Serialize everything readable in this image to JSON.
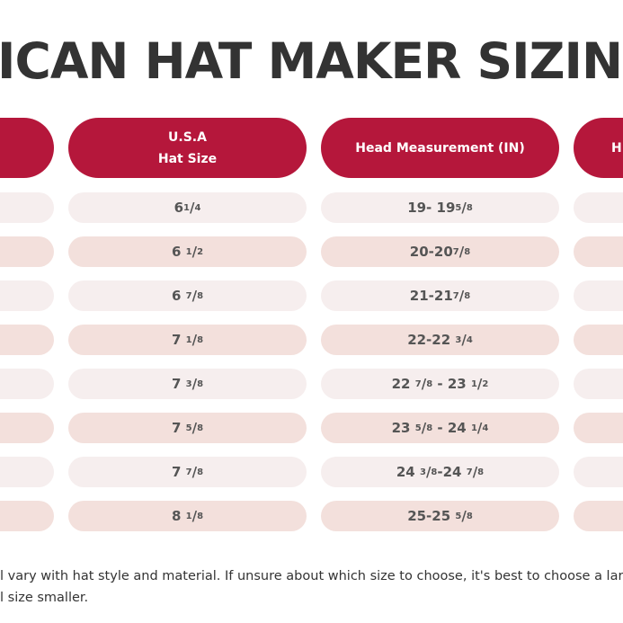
{
  "title": "ICAN HAT MAKER SIZING C",
  "table": {
    "headers": [
      [
        "U.S.A",
        "Hat Size"
      ],
      [
        "Head Measurement (IN)"
      ],
      [
        "H"
      ]
    ],
    "rows": [
      [
        [
          "6",
          {
            "n": "1",
            "s": "/",
            "d": "4"
          }
        ],
        [
          "19- 19",
          {
            "n": "5",
            "s": "/",
            "d": "8"
          }
        ]
      ],
      [
        [
          "6 ",
          {
            "n": "1",
            "s": "/",
            "d": "2"
          }
        ],
        [
          "20-20",
          {
            "n": "7",
            "s": "/",
            "d": "8"
          }
        ]
      ],
      [
        [
          "6 ",
          {
            "n": "7",
            "s": "/",
            "d": "8"
          }
        ],
        [
          "21-21",
          {
            "n": "7",
            "s": "/",
            "d": "8"
          }
        ]
      ],
      [
        [
          "7 ",
          {
            "n": "1",
            "s": "/",
            "d": "8"
          }
        ],
        [
          "22-22 ",
          {
            "n": "3",
            "s": "/",
            "d": "4"
          }
        ]
      ],
      [
        [
          "7 ",
          {
            "n": "3",
            "s": "/",
            "d": "8"
          }
        ],
        [
          "22 ",
          {
            "n": "7",
            "s": "/",
            "d": "8"
          },
          " - 23 ",
          {
            "n": "1",
            "s": "/",
            "d": "2"
          }
        ]
      ],
      [
        [
          "7 ",
          {
            "n": "5",
            "s": "/",
            "d": "8"
          }
        ],
        [
          "23 ",
          {
            "n": "5",
            "s": "/",
            "d": "8"
          },
          " - 24 ",
          {
            "n": "1",
            "s": "/",
            "d": "4"
          }
        ]
      ],
      [
        [
          "7 ",
          {
            "n": "7",
            "s": "/",
            "d": "8"
          }
        ],
        [
          "24 ",
          {
            "n": "3",
            "s": "/",
            "d": "8"
          },
          "-24 ",
          {
            "n": "7",
            "s": "/",
            "d": "8"
          }
        ]
      ],
      [
        [
          "8 ",
          {
            "n": "1",
            "s": "/",
            "d": "8"
          }
        ],
        [
          "25-25 ",
          {
            "n": "5",
            "s": "/",
            "d": "8"
          }
        ]
      ]
    ]
  },
  "footer": [
    "l vary with hat style and material. If unsure about which size to choose, it's best to choose a larger size",
    "l size smaller."
  ]
}
